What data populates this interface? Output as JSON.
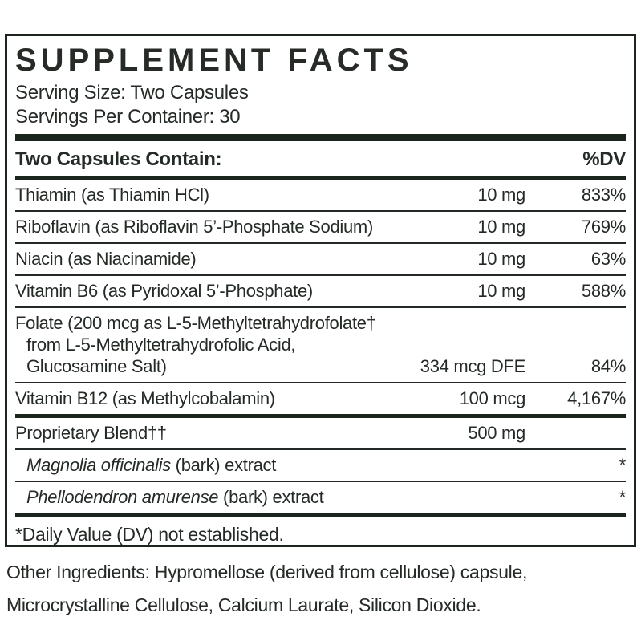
{
  "label": {
    "title": "SUPPLEMENT FACTS",
    "serving_size": "Serving Size: Two Capsules",
    "servings_per_container": "Servings Per Container: 30",
    "table_header": {
      "left": "Two Capsules Contain:",
      "right": "%DV"
    },
    "rows": [
      {
        "name": "Thiamin (as Thiamin HCl)",
        "amount": "10 mg",
        "dv": "833%"
      },
      {
        "name": "Riboflavin (as Riboflavin 5’-Phosphate Sodium)",
        "amount": "10 mg",
        "dv": "769%"
      },
      {
        "name": "Niacin (as Niacinamide)",
        "amount": "10 mg",
        "dv": "63%"
      },
      {
        "name": "Vitamin B6 (as Pyridoxal 5’-Phosphate)",
        "amount": "10 mg",
        "dv": "588%"
      },
      {
        "name_lines": [
          "Folate (200 mcg as L-5-Methyltetrahydrofolate†",
          "from L-5-Methyltetrahydrofolic Acid,",
          "Glucosamine Salt)"
        ],
        "amount": "334 mcg DFE",
        "dv": "84%"
      },
      {
        "name": "Vitamin B12 (as Methylcobalamin)",
        "amount": "100 mcg",
        "dv": "4,167%"
      }
    ],
    "blend": {
      "name": "Proprietary Blend††",
      "amount": "500 mg",
      "dv": ""
    },
    "blend_items": [
      {
        "latin": "Magnolia officinalis",
        "rest": " (bark) extract",
        "dv": "*"
      },
      {
        "latin": "Phellodendron amurense",
        "rest": " (bark) extract",
        "dv": "*"
      }
    ],
    "footnote": "*Daily Value (DV) not established.",
    "colors": {
      "ink": "#242a25",
      "rule": "#1c241e",
      "background": "#ffffff"
    }
  },
  "other_ingredients": "Other Ingredients: Hypromellose (derived from cellulose) capsule, Microcrystalline Cellulose, Calcium Laurate, Silicon Dioxide."
}
